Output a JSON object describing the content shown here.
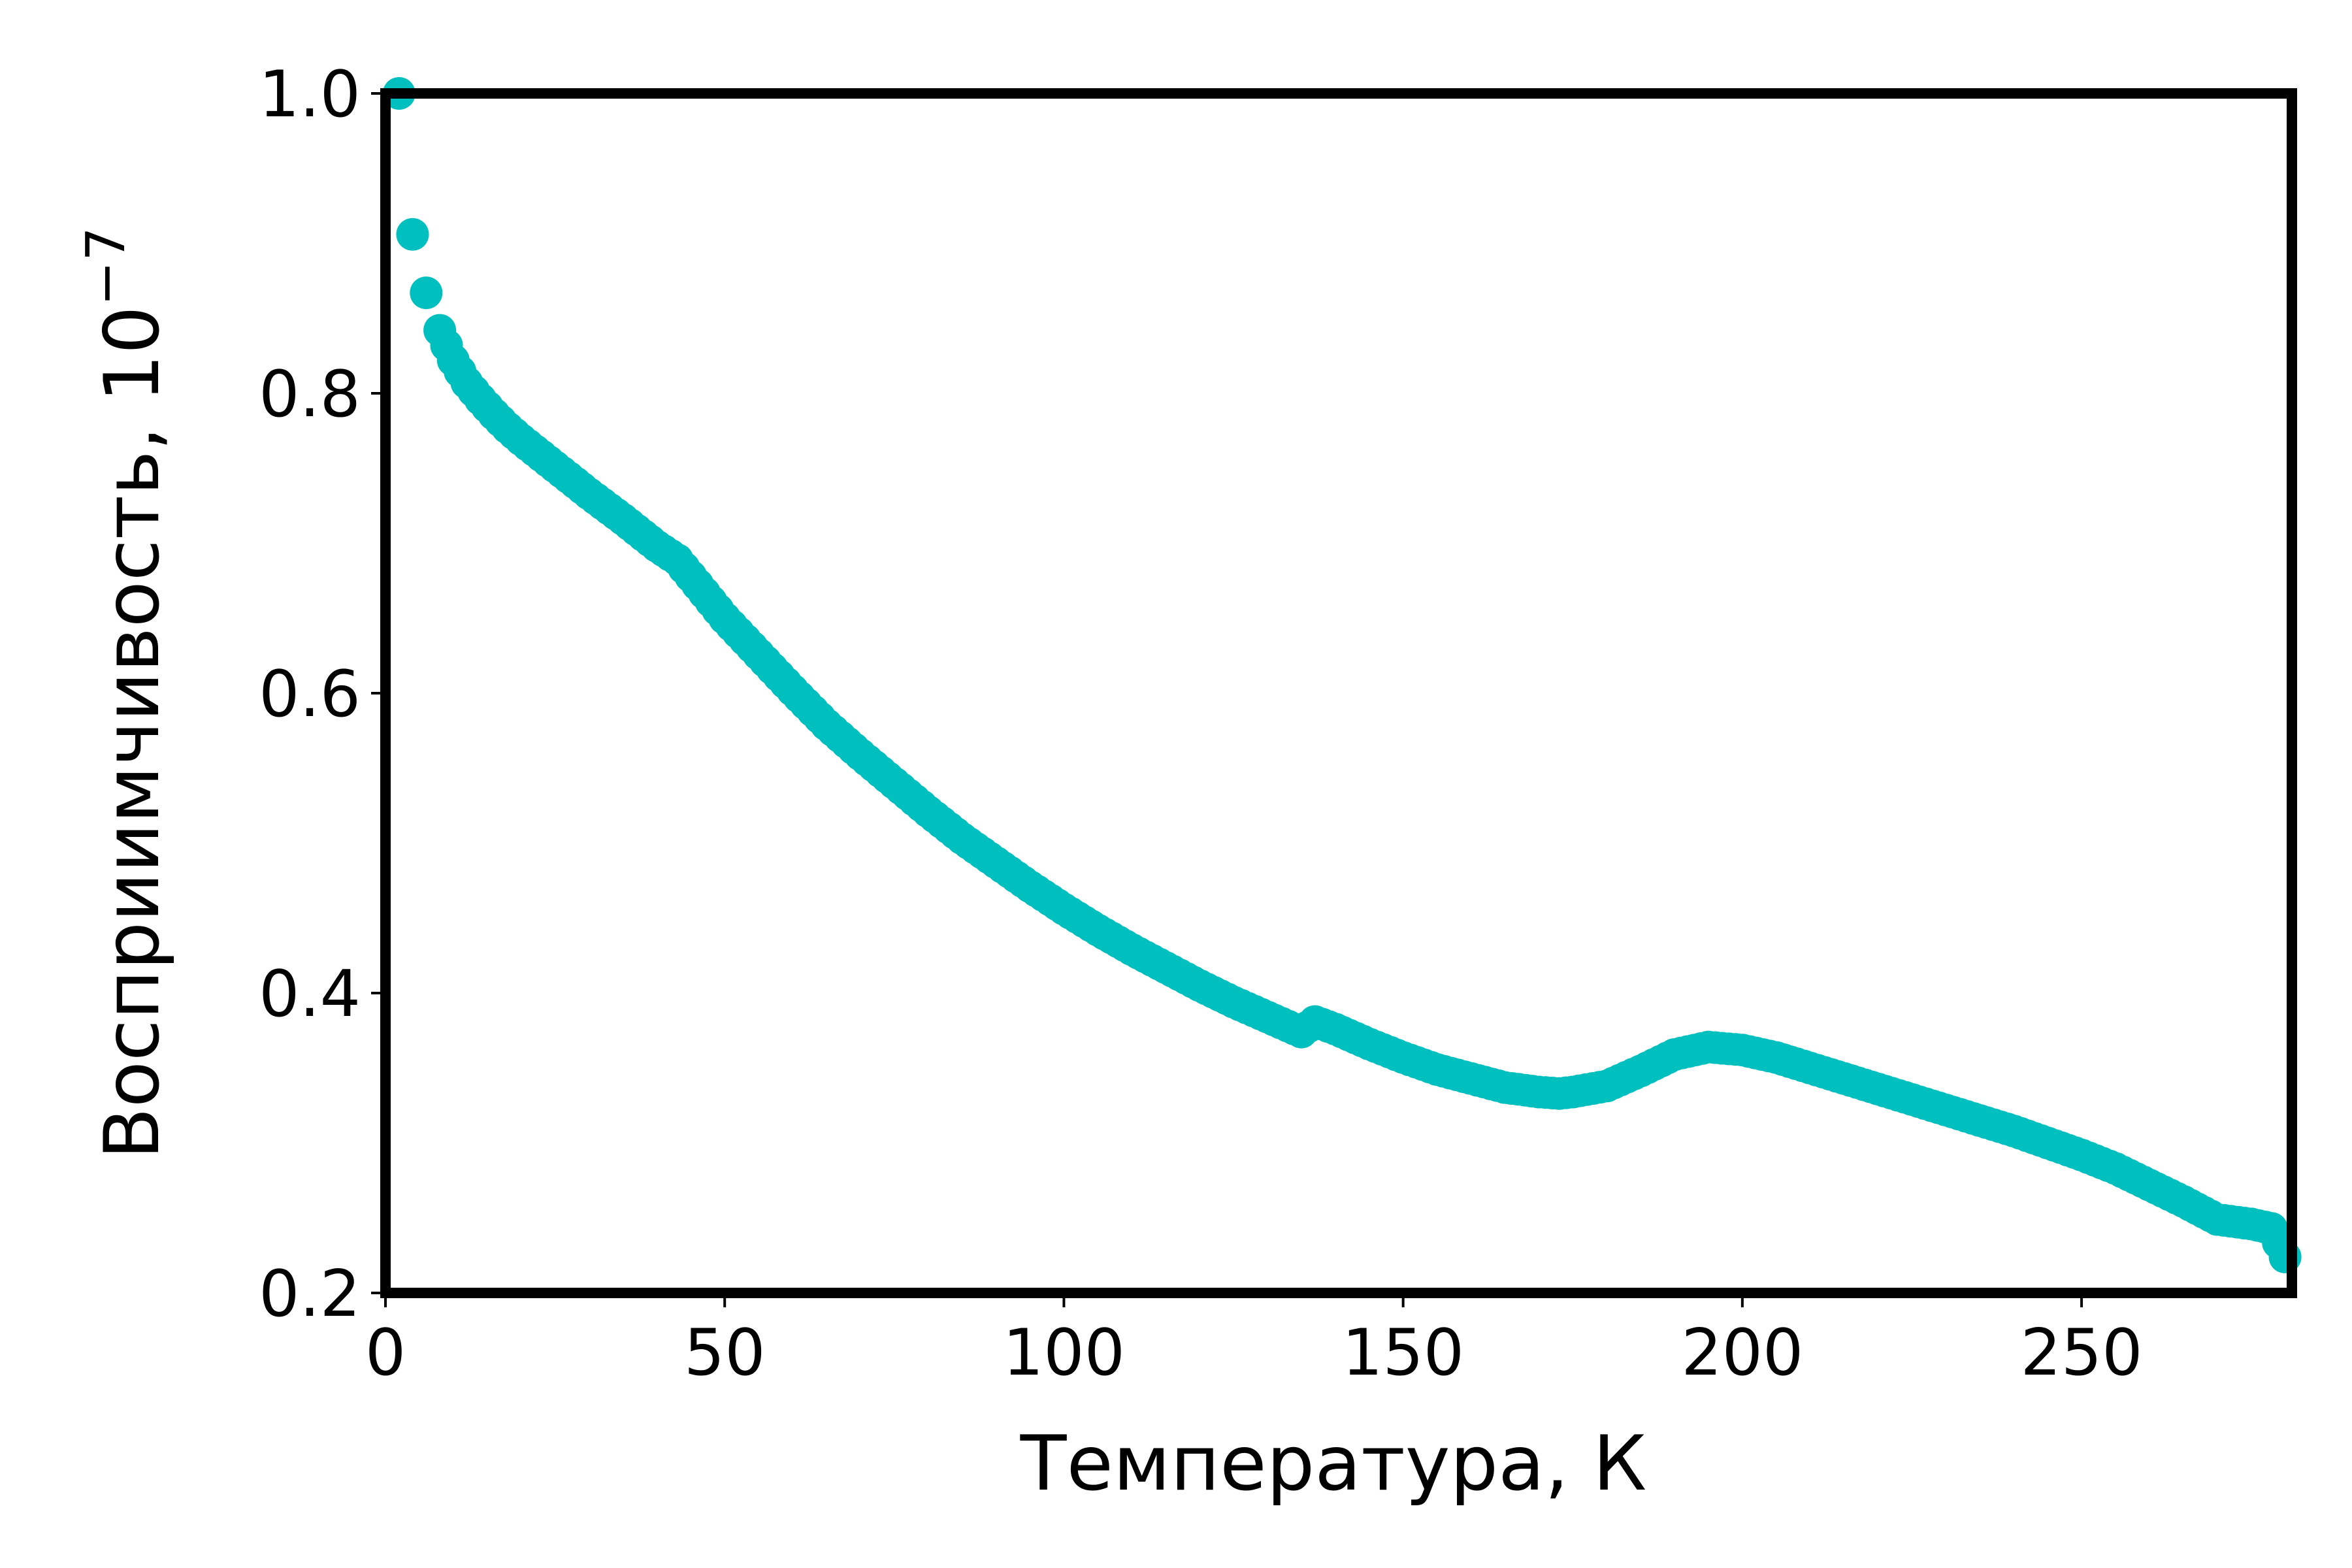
{
  "chart_data": {
    "type": "scatter",
    "xlabel": "Температура, К",
    "ylabel": "Восприимчивость, 10",
    "ylabel_exponent": "−7",
    "xlim": [
      0,
      281
    ],
    "ylim": [
      0.2,
      1.0
    ],
    "xticks": [
      {
        "value": 0,
        "label": "0"
      },
      {
        "value": 50,
        "label": "50"
      },
      {
        "value": 100,
        "label": "100"
      },
      {
        "value": 150,
        "label": "150"
      },
      {
        "value": 200,
        "label": "200"
      },
      {
        "value": 250,
        "label": "250"
      }
    ],
    "yticks": [
      {
        "value": 0.2,
        "label": "0.2"
      },
      {
        "value": 0.4,
        "label": "0.4"
      },
      {
        "value": 0.6,
        "label": "0.6"
      },
      {
        "value": 0.8,
        "label": "0.8"
      },
      {
        "value": 1.0,
        "label": "1.0"
      }
    ],
    "grid": false,
    "marker_color": "#00BFBF",
    "series": [
      {
        "x": [
          2,
          4,
          6,
          8,
          10,
          12,
          14,
          16,
          18,
          20,
          25,
          30,
          35,
          40,
          43,
          45,
          50,
          55,
          60,
          65,
          70,
          75,
          80,
          85,
          90,
          95,
          100,
          105,
          110,
          115,
          120,
          125,
          130,
          135,
          137,
          140,
          145,
          150,
          155,
          160,
          165,
          170,
          173,
          175,
          180,
          185,
          190,
          195,
          200,
          205,
          210,
          215,
          220,
          225,
          230,
          235,
          240,
          245,
          250,
          255,
          260,
          265,
          270,
          275,
          278,
          280
        ],
        "y": [
          1.0,
          0.906,
          0.867,
          0.842,
          0.822,
          0.807,
          0.796,
          0.786,
          0.777,
          0.769,
          0.751,
          0.733,
          0.716,
          0.698,
          0.689,
          0.678,
          0.65,
          0.626,
          0.602,
          0.579,
          0.559,
          0.54,
          0.521,
          0.503,
          0.487,
          0.471,
          0.456,
          0.442,
          0.429,
          0.417,
          0.405,
          0.394,
          0.384,
          0.374,
          0.381,
          0.376,
          0.366,
          0.357,
          0.349,
          0.343,
          0.337,
          0.334,
          0.333,
          0.334,
          0.338,
          0.348,
          0.359,
          0.364,
          0.362,
          0.357,
          0.35,
          0.343,
          0.336,
          0.329,
          0.322,
          0.315,
          0.308,
          0.3,
          0.292,
          0.283,
          0.272,
          0.261,
          0.249,
          0.246,
          0.243,
          0.224
        ]
      }
    ]
  }
}
